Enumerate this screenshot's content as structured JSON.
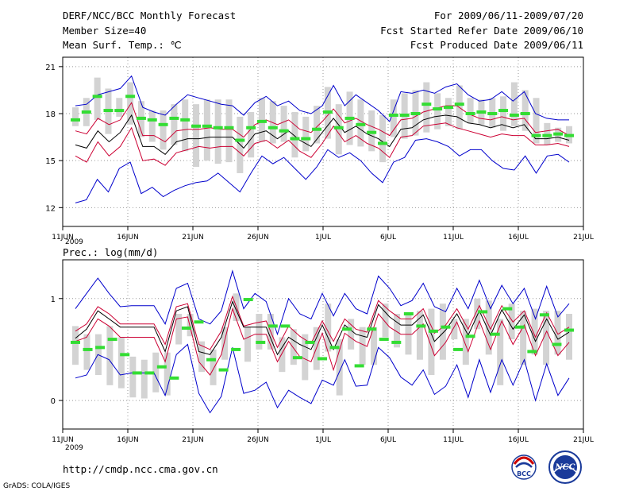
{
  "header": {
    "title": "DERF/NCC/BCC Monthly Forecast",
    "member_size": "Member Size=40",
    "variable": "Mean Surf. Temp.: ℃",
    "period": "For 2009/06/11-2009/07/20",
    "started": "Fcst Started Refer Date 2009/06/10",
    "produced": "Fcst Produced Date 2009/06/11"
  },
  "footer": {
    "url": "http://cmdp.ncc.cma.gov.cn",
    "grads": "GrADS: COLA/IGES",
    "logo_bcc_text": "BCC",
    "logo_ncc_text": "NCC"
  },
  "colors": {
    "mean": "#000000",
    "spread": "#cc0033",
    "extreme": "#0000cc",
    "box": "#d3d3d3",
    "median": "#33dd33",
    "grid": "#999999"
  },
  "chart_data": [
    {
      "type": "line",
      "title": "Mean Surf. Temp.: ℃",
      "x_tick_labels": [
        "11JUN",
        "16JUN",
        "21JUN",
        "26JUN",
        "1JUL",
        "6JUL",
        "11JUL",
        "16JUL",
        "21JUL"
      ],
      "x_year_label": "2009",
      "y_tick_labels": [
        "12",
        "15",
        "18",
        "21"
      ],
      "ylim": [
        10.8,
        21.6
      ],
      "grid": true,
      "series": [
        {
          "name": "max",
          "role": "extreme",
          "values": [
            18.5,
            18.6,
            19.2,
            19.4,
            19.6,
            20.4,
            18.4,
            18.1,
            17.9,
            18.6,
            19.2,
            19.0,
            18.8,
            18.6,
            18.5,
            17.9,
            18.7,
            19.1,
            18.5,
            18.8,
            18.2,
            18.0,
            18.5,
            19.8,
            18.5,
            19.2,
            18.7,
            18.2,
            17.5,
            19.4,
            19.3,
            19.5,
            19.3,
            19.7,
            19.9,
            19.2,
            18.8,
            18.9,
            19.4,
            18.8,
            19.4,
            18.0,
            17.7,
            17.6,
            17.6
          ]
        },
        {
          "name": "upper",
          "role": "spread",
          "values": [
            16.9,
            16.7,
            17.7,
            17.3,
            17.6,
            18.7,
            16.6,
            16.6,
            16.2,
            16.9,
            17.0,
            17.0,
            17.1,
            17.0,
            17.0,
            16.5,
            17.3,
            17.6,
            17.3,
            17.6,
            17.0,
            16.8,
            17.5,
            18.3,
            17.4,
            17.7,
            17.3,
            17.0,
            16.6,
            17.6,
            17.7,
            18.1,
            18.3,
            18.5,
            18.5,
            18.0,
            17.7,
            17.6,
            17.8,
            17.6,
            17.7,
            16.8,
            16.9,
            17.0,
            16.6
          ]
        },
        {
          "name": "mean",
          "role": "mean",
          "values": [
            16.0,
            15.8,
            16.9,
            16.2,
            16.8,
            17.9,
            15.9,
            15.9,
            15.4,
            16.2,
            16.4,
            16.4,
            16.5,
            16.5,
            16.5,
            15.8,
            16.7,
            16.9,
            16.4,
            16.9,
            16.3,
            15.9,
            16.8,
            17.7,
            16.8,
            17.2,
            16.7,
            16.4,
            15.9,
            17.0,
            17.1,
            17.6,
            17.8,
            17.9,
            17.8,
            17.4,
            17.3,
            17.1,
            17.3,
            17.1,
            17.3,
            16.4,
            16.4,
            16.5,
            16.3
          ]
        },
        {
          "name": "lower",
          "role": "spread",
          "values": [
            15.3,
            14.9,
            16.2,
            15.3,
            15.9,
            17.1,
            15.0,
            15.1,
            14.7,
            15.5,
            15.7,
            15.9,
            15.8,
            15.9,
            15.9,
            15.3,
            16.1,
            16.3,
            15.8,
            16.3,
            15.6,
            15.2,
            16.1,
            17.2,
            16.2,
            16.6,
            16.1,
            15.8,
            15.2,
            16.5,
            16.6,
            17.2,
            17.3,
            17.4,
            17.1,
            16.9,
            16.7,
            16.5,
            16.7,
            16.6,
            16.6,
            16.0,
            16.0,
            16.1,
            15.9
          ]
        },
        {
          "name": "min",
          "role": "extreme",
          "values": [
            12.3,
            12.5,
            13.8,
            13.0,
            14.5,
            14.9,
            12.9,
            13.3,
            12.7,
            13.1,
            13.4,
            13.6,
            13.7,
            14.2,
            13.6,
            13.0,
            14.2,
            15.3,
            14.8,
            15.2,
            14.5,
            13.8,
            14.6,
            15.7,
            15.2,
            15.5,
            15.0,
            14.2,
            13.6,
            14.9,
            15.2,
            16.3,
            16.4,
            16.2,
            15.9,
            15.3,
            15.7,
            15.7,
            15.0,
            14.5,
            14.4,
            15.3,
            14.2,
            15.3,
            15.4,
            14.9
          ]
        },
        {
          "name": "median",
          "role": "median",
          "values": [
            17.6,
            18.1,
            19.1,
            18.2,
            18.2,
            19.1,
            17.7,
            17.6,
            17.3,
            17.7,
            17.6,
            17.2,
            17.2,
            17.1,
            17.1,
            16.3,
            17.1,
            17.5,
            17.1,
            16.9,
            16.4,
            16.4,
            17.0,
            18.1,
            17.1,
            17.7,
            17.3,
            16.8,
            16.1,
            17.9,
            17.9,
            18.0,
            18.6,
            18.3,
            18.4,
            18.6,
            18.0,
            18.1,
            18.0,
            18.2,
            17.9,
            18.0,
            16.6,
            16.6,
            16.7,
            16.6
          ]
        },
        {
          "name": "box_top",
          "role": "box",
          "values": [
            18.4,
            19.0,
            20.3,
            19.6,
            19.0,
            20.0,
            18.8,
            18.2,
            18.2,
            18.6,
            18.9,
            18.6,
            18.9,
            18.9,
            18.9,
            17.8,
            18.1,
            19.0,
            18.8,
            18.5,
            18.1,
            17.8,
            18.5,
            19.7,
            18.6,
            19.4,
            18.9,
            18.2,
            17.9,
            18.9,
            19.3,
            19.5,
            20.0,
            19.3,
            19.0,
            19.8,
            19.0,
            18.9,
            19.0,
            19.1,
            20.0,
            19.5,
            19.0,
            17.4,
            17.1,
            17.2
          ]
        },
        {
          "name": "box_bottom",
          "role": "box",
          "values": [
            17.2,
            17.2,
            17.6,
            16.7,
            17.8,
            17.3,
            16.5,
            16.2,
            15.7,
            16.0,
            15.6,
            14.6,
            15.0,
            14.8,
            14.9,
            14.2,
            15.2,
            16.2,
            16.1,
            16.2,
            15.2,
            15.6,
            16.1,
            16.4,
            15.4,
            16.0,
            15.9,
            15.6,
            14.9,
            16.5,
            16.4,
            16.6,
            16.8,
            17.0,
            17.2,
            17.0,
            17.4,
            17.3,
            17.1,
            16.9,
            17.2,
            16.9,
            16.1,
            16.0,
            16.2,
            16.1
          ]
        }
      ]
    },
    {
      "type": "line",
      "title": "Prec.: log(mm/d)",
      "x_tick_labels": [
        "11JUN",
        "16JUN",
        "21JUN",
        "26JUN",
        "1JUL",
        "6JUL",
        "11JUL",
        "16JUL",
        "21JUL"
      ],
      "x_year_label": "2009",
      "y_tick_labels": [
        "0",
        "1"
      ],
      "ylim": [
        -0.28,
        1.38
      ],
      "grid": true,
      "series": [
        {
          "name": "max",
          "role": "extreme",
          "values": [
            0.9,
            1.05,
            1.2,
            1.05,
            0.92,
            0.93,
            0.93,
            0.93,
            0.75,
            1.1,
            1.15,
            0.8,
            0.75,
            0.88,
            1.27,
            0.9,
            1.05,
            0.97,
            0.65,
            1.0,
            0.85,
            0.8,
            1.05,
            0.83,
            1.05,
            0.9,
            0.85,
            1.22,
            1.1,
            0.93,
            0.98,
            1.15,
            0.92,
            0.87,
            1.1,
            0.9,
            1.18,
            0.9,
            1.13,
            0.95,
            1.1,
            0.8,
            1.12,
            0.82,
            0.95
          ]
        },
        {
          "name": "upper",
          "role": "spread",
          "values": [
            0.68,
            0.75,
            0.92,
            0.85,
            0.75,
            0.75,
            0.75,
            0.75,
            0.55,
            0.92,
            0.95,
            0.55,
            0.5,
            0.68,
            1.02,
            0.73,
            0.76,
            0.78,
            0.52,
            0.73,
            0.63,
            0.56,
            0.78,
            0.58,
            0.8,
            0.7,
            0.67,
            0.98,
            0.88,
            0.8,
            0.8,
            0.9,
            0.66,
            0.74,
            0.9,
            0.7,
            0.93,
            0.7,
            0.93,
            0.77,
            0.88,
            0.62,
            0.86,
            0.65,
            0.72
          ]
        },
        {
          "name": "mean",
          "role": "mean",
          "values": [
            0.61,
            0.7,
            0.88,
            0.8,
            0.72,
            0.72,
            0.72,
            0.72,
            0.48,
            0.88,
            0.92,
            0.48,
            0.45,
            0.62,
            0.97,
            0.72,
            0.72,
            0.72,
            0.45,
            0.62,
            0.55,
            0.5,
            0.74,
            0.5,
            0.74,
            0.65,
            0.62,
            0.94,
            0.82,
            0.74,
            0.74,
            0.84,
            0.58,
            0.69,
            0.85,
            0.64,
            0.88,
            0.64,
            0.89,
            0.7,
            0.84,
            0.58,
            0.8,
            0.6,
            0.67
          ]
        },
        {
          "name": "lower",
          "role": "spread",
          "values": [
            0.58,
            0.62,
            0.8,
            0.73,
            0.62,
            0.62,
            0.62,
            0.62,
            0.38,
            0.8,
            0.82,
            0.38,
            0.25,
            0.45,
            0.9,
            0.6,
            0.65,
            0.65,
            0.38,
            0.58,
            0.43,
            0.38,
            0.66,
            0.3,
            0.66,
            0.58,
            0.53,
            0.85,
            0.72,
            0.65,
            0.65,
            0.75,
            0.44,
            0.57,
            0.77,
            0.48,
            0.78,
            0.5,
            0.78,
            0.55,
            0.74,
            0.44,
            0.68,
            0.44,
            0.57
          ]
        },
        {
          "name": "min",
          "role": "extreme",
          "values": [
            0.22,
            0.25,
            0.45,
            0.4,
            0.25,
            0.27,
            0.27,
            0.27,
            0.05,
            0.45,
            0.55,
            0.07,
            -0.12,
            0.04,
            0.52,
            0.07,
            0.1,
            0.18,
            -0.07,
            0.1,
            0.03,
            -0.03,
            0.2,
            0.15,
            0.4,
            0.14,
            0.15,
            0.52,
            0.42,
            0.23,
            0.15,
            0.3,
            0.06,
            0.14,
            0.35,
            0.03,
            0.4,
            0.08,
            0.4,
            0.15,
            0.4,
            0.0,
            0.36,
            0.05,
            0.22
          ]
        },
        {
          "name": "median",
          "role": "median",
          "values": [
            0.57,
            0.5,
            0.52,
            0.6,
            0.45,
            0.27,
            0.27,
            0.33,
            0.22,
            0.71,
            0.77,
            0.4,
            0.3,
            0.5,
            0.99,
            0.57,
            0.73,
            0.73,
            0.42,
            0.57,
            0.41,
            0.52,
            0.7,
            0.34,
            0.7,
            0.6,
            0.57,
            0.85,
            0.73,
            0.68,
            0.72,
            0.5,
            0.63,
            0.87,
            0.65,
            0.9,
            0.72,
            0.48,
            0.84,
            0.55,
            0.69
          ]
        },
        {
          "name": "box_top",
          "role": "box",
          "values": [
            0.73,
            0.65,
            0.65,
            0.73,
            0.62,
            0.43,
            0.4,
            0.47,
            0.47,
            0.85,
            0.85,
            0.58,
            0.5,
            0.72,
            1.05,
            0.72,
            0.85,
            0.85,
            0.62,
            0.7,
            0.65,
            0.72,
            0.95,
            0.6,
            0.8,
            0.72,
            0.72,
            0.95,
            0.85,
            0.85,
            0.88,
            0.9,
            0.95,
            0.8,
            0.8,
            1.0,
            0.98,
            0.8,
            0.95,
            0.88,
            0.9,
            0.88,
            0.88,
            0.85
          ]
        },
        {
          "name": "box_bottom",
          "role": "box",
          "values": [
            0.35,
            0.3,
            0.25,
            0.15,
            0.12,
            0.03,
            0.02,
            0.08,
            0.05,
            0.55,
            0.63,
            0.28,
            0.15,
            0.4,
            0.78,
            0.38,
            0.5,
            0.5,
            0.28,
            0.35,
            0.2,
            0.3,
            0.48,
            0.05,
            0.5,
            0.35,
            0.35,
            0.62,
            0.52,
            0.45,
            0.4,
            0.25,
            0.4,
            0.6,
            0.35,
            0.7,
            0.45,
            0.15,
            0.6,
            0.35,
            0.45,
            0.35,
            0.45,
            0.4
          ]
        }
      ]
    }
  ]
}
